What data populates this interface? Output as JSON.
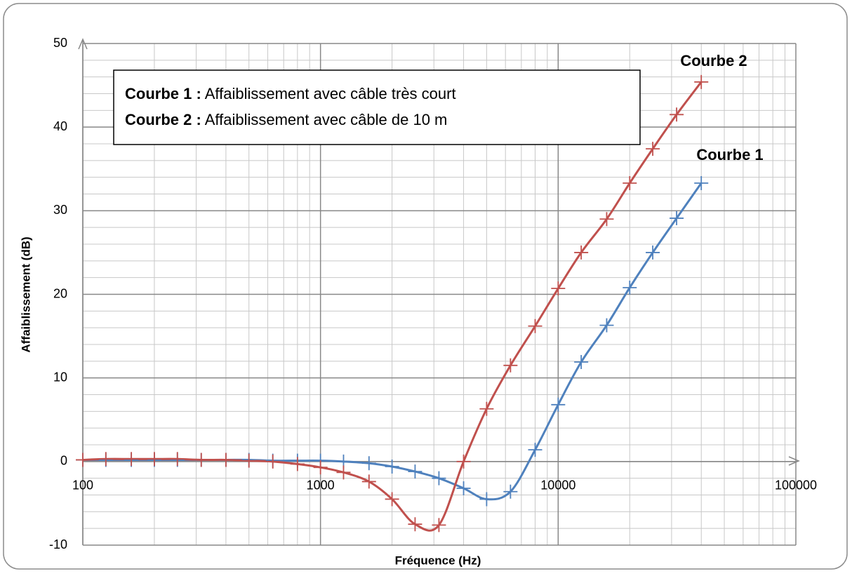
{
  "chart_data": {
    "type": "line",
    "xlabel": "Fréquence (Hz)",
    "ylabel": "Affaiblissement (dB)",
    "x": [
      100,
      125,
      160,
      200,
      250,
      315,
      400,
      500,
      630,
      800,
      1000,
      1250,
      1600,
      2000,
      2500,
      3150,
      4000,
      5000,
      6300,
      8000,
      10000,
      12500,
      16000,
      20000,
      25000,
      31500,
      40000
    ],
    "series": [
      {
        "name": "Courbe 1",
        "color": "#4f81bd",
        "values": [
          0.2,
          0.2,
          0.2,
          0.2,
          0.2,
          0.2,
          0.2,
          0.2,
          0.1,
          0.1,
          0.1,
          0,
          -0.2,
          -0.6,
          -1.2,
          -2,
          -3.2,
          -4.5,
          -3.6,
          1.4,
          6.8,
          11.9,
          16.3,
          20.8,
          25,
          29.1,
          33.3
        ]
      },
      {
        "name": "Courbe 2",
        "color": "#c0504d",
        "values": [
          0.2,
          0.3,
          0.3,
          0.3,
          0.3,
          0.2,
          0.2,
          0.1,
          0,
          -0.3,
          -0.7,
          -1.3,
          -2.4,
          -4.5,
          -7.5,
          -7.6,
          0,
          6.3,
          11.5,
          16.2,
          20.7,
          25,
          29,
          33.3,
          37.4,
          41.5,
          45.4
        ]
      }
    ],
    "legend": [
      {
        "label": "Courbe 1 :",
        "description": "Affaiblissement avec câble très court"
      },
      {
        "label": "Courbe 2 :",
        "description": "Affaiblissement avec câble de 10 m"
      }
    ],
    "xscale": "log",
    "xlim": [
      100,
      100000
    ],
    "xticks": [
      100,
      1000,
      10000,
      100000
    ],
    "ylim": [
      -10,
      50
    ],
    "yticks": [
      -10,
      0,
      10,
      20,
      30,
      40,
      50
    ],
    "grid": true
  }
}
